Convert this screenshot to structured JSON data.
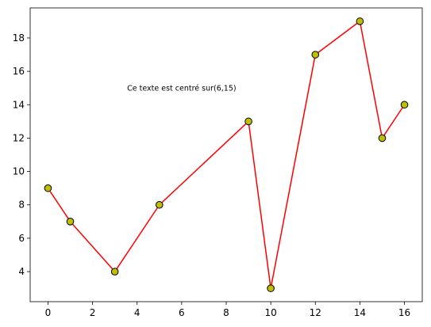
{
  "chart_data": {
    "type": "line",
    "title": "",
    "xlabel": "",
    "ylabel": "",
    "xlim": [
      -0.8,
      16.8
    ],
    "ylim": [
      2.2,
      19.8
    ],
    "x_ticks": [
      0,
      2,
      4,
      6,
      8,
      10,
      12,
      14,
      16
    ],
    "y_ticks": [
      4,
      6,
      8,
      10,
      12,
      14,
      16,
      18
    ],
    "grid": false,
    "legend": "none",
    "series": [
      {
        "x": [
          0,
          1,
          3,
          5,
          9,
          10,
          12,
          14,
          15,
          16
        ],
        "y": [
          9,
          7,
          4,
          8,
          13,
          3,
          17,
          19,
          12,
          14
        ],
        "line_color": "#ff0000",
        "marker": "circle",
        "marker_face_color": "#bfbf00",
        "marker_edge_color": "#000000"
      }
    ],
    "annotations": [
      {
        "text": "Ce texte est centré sur(6,15)",
        "x": 6,
        "y": 15,
        "ha": "center",
        "va": "center"
      }
    ]
  }
}
